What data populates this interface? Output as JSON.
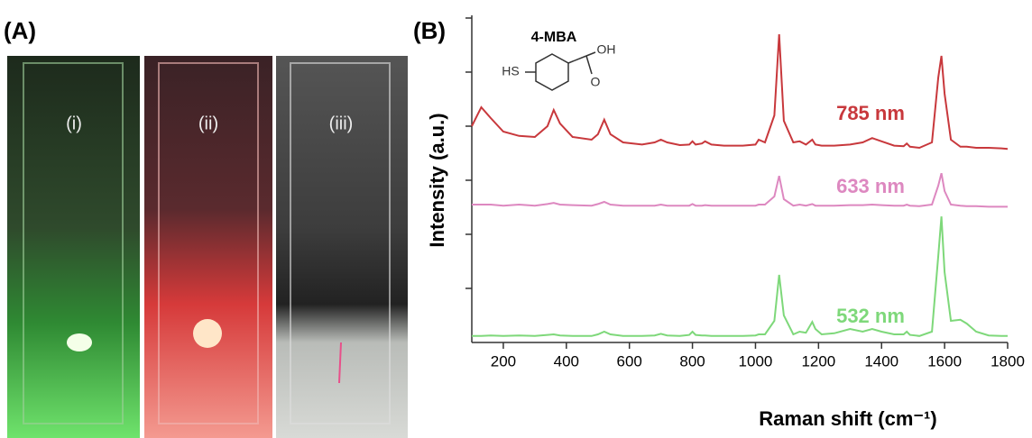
{
  "panels": [
    "(A)",
    "(B)"
  ],
  "photos": [
    "(i)",
    "(ii)",
    "(iii)"
  ],
  "structure": {
    "name": "4-MBA",
    "labels": [
      "HS",
      "OH",
      "O"
    ]
  },
  "chart_data": {
    "type": "line",
    "xlabel": "Raman shift (cm⁻¹)",
    "ylabel": "Intensity (a.u.)",
    "x": [
      100,
      130,
      160,
      200,
      250,
      300,
      340,
      360,
      380,
      420,
      480,
      500,
      520,
      540,
      580,
      640,
      680,
      700,
      720,
      760,
      790,
      800,
      810,
      830,
      840,
      860,
      900,
      960,
      1000,
      1010,
      1030,
      1060,
      1075,
      1090,
      1120,
      1140,
      1160,
      1180,
      1190,
      1210,
      1250,
      1300,
      1340,
      1370,
      1400,
      1440,
      1470,
      1480,
      1490,
      1520,
      1560,
      1580,
      1590,
      1600,
      1620,
      1650,
      1670,
      1700,
      1740,
      1780,
      1800
    ],
    "series": [
      {
        "name": "785 nm",
        "color": "#c8383c",
        "values": [
          4.0,
          4.35,
          4.15,
          3.9,
          3.82,
          3.8,
          4.0,
          4.3,
          4.05,
          3.8,
          3.75,
          3.85,
          4.12,
          3.85,
          3.7,
          3.66,
          3.7,
          3.75,
          3.7,
          3.65,
          3.66,
          3.72,
          3.66,
          3.68,
          3.72,
          3.66,
          3.64,
          3.64,
          3.66,
          3.75,
          3.7,
          4.2,
          5.7,
          4.1,
          3.7,
          3.72,
          3.66,
          3.75,
          3.66,
          3.64,
          3.64,
          3.66,
          3.7,
          3.78,
          3.72,
          3.64,
          3.63,
          3.68,
          3.62,
          3.6,
          3.7,
          4.9,
          5.3,
          4.6,
          3.75,
          3.62,
          3.62,
          3.6,
          3.6,
          3.59,
          3.58
        ]
      },
      {
        "name": "633 nm",
        "color": "#dd88c0",
        "values": [
          2.55,
          2.55,
          2.55,
          2.53,
          2.55,
          2.53,
          2.56,
          2.58,
          2.55,
          2.54,
          2.53,
          2.56,
          2.6,
          2.55,
          2.53,
          2.53,
          2.53,
          2.55,
          2.53,
          2.53,
          2.53,
          2.56,
          2.53,
          2.53,
          2.54,
          2.53,
          2.53,
          2.53,
          2.53,
          2.55,
          2.55,
          2.7,
          3.08,
          2.65,
          2.53,
          2.55,
          2.53,
          2.56,
          2.53,
          2.53,
          2.53,
          2.54,
          2.54,
          2.55,
          2.54,
          2.53,
          2.53,
          2.55,
          2.53,
          2.52,
          2.55,
          2.9,
          3.13,
          2.8,
          2.55,
          2.53,
          2.52,
          2.52,
          2.51,
          2.51,
          2.51
        ]
      },
      {
        "name": "532 nm",
        "color": "#7ed87a",
        "values": [
          0.12,
          0.12,
          0.13,
          0.12,
          0.13,
          0.12,
          0.14,
          0.15,
          0.13,
          0.12,
          0.12,
          0.15,
          0.2,
          0.15,
          0.12,
          0.12,
          0.13,
          0.16,
          0.13,
          0.12,
          0.14,
          0.2,
          0.14,
          0.13,
          0.13,
          0.12,
          0.12,
          0.12,
          0.13,
          0.15,
          0.15,
          0.4,
          1.25,
          0.5,
          0.15,
          0.2,
          0.18,
          0.38,
          0.25,
          0.15,
          0.17,
          0.25,
          0.2,
          0.25,
          0.2,
          0.15,
          0.15,
          0.2,
          0.14,
          0.12,
          0.2,
          1.6,
          2.33,
          1.3,
          0.4,
          0.42,
          0.35,
          0.2,
          0.13,
          0.12,
          0.12
        ]
      }
    ],
    "xlim": [
      100,
      1800
    ],
    "xticks": [
      200,
      400,
      600,
      800,
      1000,
      1200,
      1400,
      1600,
      1800
    ],
    "ylim": [
      0,
      6.05
    ],
    "yticks": [
      1,
      2,
      3,
      4,
      5,
      6
    ],
    "show_ytick_labels": false
  }
}
